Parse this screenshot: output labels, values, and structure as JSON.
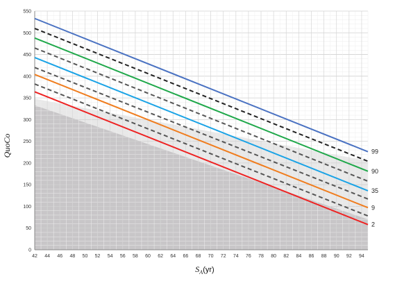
{
  "chart_data": {
    "type": "line",
    "ylabel": "QuoCo",
    "xlabel_main": "S",
    "xlabel_sub": "A",
    "xlabel_unit": "(yr)",
    "xlim": [
      42,
      95
    ],
    "ylim": [
      0,
      550
    ],
    "x_ticks": [
      42,
      44,
      46,
      48,
      50,
      52,
      54,
      56,
      58,
      60,
      62,
      64,
      66,
      68,
      70,
      72,
      74,
      76,
      78,
      80,
      82,
      84,
      86,
      88,
      90,
      92,
      94
    ],
    "y_ticks": [
      0,
      50,
      100,
      150,
      200,
      250,
      300,
      350,
      400,
      450,
      500,
      550
    ],
    "grid": true,
    "shaded_regions": [
      {
        "color": "#e8e8e8",
        "points": [
          [
            42,
            348
          ],
          [
            95,
            205
          ],
          [
            95,
            0
          ],
          [
            42,
            0
          ]
        ]
      },
      {
        "color": "#c8c6c8",
        "points": [
          [
            42,
            333
          ],
          [
            95,
            70
          ],
          [
            95,
            0
          ],
          [
            42,
            0
          ]
        ]
      }
    ],
    "series": [
      {
        "color": "#4a72c2",
        "style": "solid",
        "end_label": "99",
        "values": [
          [
            42,
            533
          ],
          [
            95,
            226
          ]
        ]
      },
      {
        "color": "#222222",
        "style": "dashed",
        "end_label": "",
        "values": [
          [
            42,
            510
          ],
          [
            95,
            204
          ]
        ]
      },
      {
        "color": "#1fa84a",
        "style": "solid",
        "end_label": "90",
        "values": [
          [
            42,
            488
          ],
          [
            95,
            181
          ]
        ]
      },
      {
        "color": "#555555",
        "style": "dashed",
        "end_label": "",
        "values": [
          [
            42,
            465
          ],
          [
            95,
            158
          ]
        ]
      },
      {
        "color": "#1aa3e6",
        "style": "solid",
        "end_label": "35",
        "values": [
          [
            42,
            443
          ],
          [
            95,
            136
          ]
        ]
      },
      {
        "color": "#555555",
        "style": "dashed",
        "end_label": "",
        "values": [
          [
            42,
            420
          ],
          [
            95,
            117
          ]
        ]
      },
      {
        "color": "#f07d1e",
        "style": "solid",
        "end_label": "9",
        "values": [
          [
            42,
            404
          ],
          [
            95,
            97
          ]
        ]
      },
      {
        "color": "#555555",
        "style": "dashed",
        "end_label": "",
        "values": [
          [
            42,
            382
          ],
          [
            95,
            78
          ]
        ]
      },
      {
        "color": "#ee2222",
        "style": "solid",
        "end_label": "2",
        "values": [
          [
            42,
            364
          ],
          [
            95,
            58
          ]
        ]
      }
    ]
  }
}
